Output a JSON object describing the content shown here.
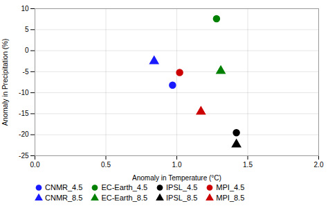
{
  "chart_data": {
    "type": "scatter",
    "xlabel": "Anomaly in Temperature (°C)",
    "ylabel": "Anomaly in Precipitation (%)",
    "xlim": [
      0,
      2
    ],
    "ylim": [
      -25,
      10
    ],
    "xticks": [
      {
        "value": 0,
        "label": "0.0"
      },
      0.5,
      {
        "value": 1.0,
        "label": "1.0"
      },
      1.5,
      {
        "value": 2.0,
        "label": "2.0"
      }
    ],
    "yticks": [
      -25,
      -20,
      -15,
      -10,
      -5,
      0,
      5,
      10
    ],
    "grid": true,
    "legend": "bottom",
    "series": [
      {
        "name": "CNMR_4.5",
        "color": "#1a1aff",
        "marker": "circle",
        "x": [
          0.97
        ],
        "values": [
          -8.2
        ]
      },
      {
        "name": "EC-Earth_4.5",
        "color": "#008000",
        "marker": "circle",
        "x": [
          1.28
        ],
        "values": [
          7.6
        ]
      },
      {
        "name": "IPSL_4.5",
        "color": "#000000",
        "marker": "circle",
        "x": [
          1.42
        ],
        "values": [
          -19.5
        ]
      },
      {
        "name": "MPI_4.5",
        "color": "#cc0000",
        "marker": "circle",
        "x": [
          1.02
        ],
        "values": [
          -5.2
        ]
      },
      {
        "name": "CNMR_8.5",
        "color": "#1a1aff",
        "marker": "triangle",
        "x": [
          0.84
        ],
        "values": [
          -2.5
        ]
      },
      {
        "name": "EC-Earth_8.5",
        "color": "#008000",
        "marker": "triangle",
        "x": [
          1.31
        ],
        "values": [
          -4.8
        ]
      },
      {
        "name": "IPSL_8.5",
        "color": "#000000",
        "marker": "triangle",
        "x": [
          1.42
        ],
        "values": [
          -22.3
        ]
      },
      {
        "name": "MPI_8.5",
        "color": "#cc0000",
        "marker": "triangle",
        "x": [
          1.17
        ],
        "values": [
          -14.5
        ]
      }
    ]
  }
}
